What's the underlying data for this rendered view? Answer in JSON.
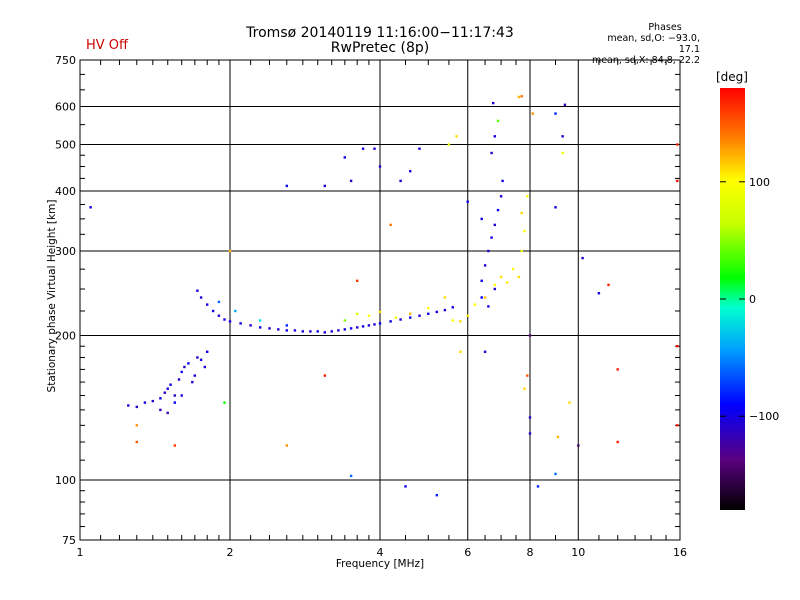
{
  "header": {
    "title": "Tromsø 20140119 11:16:00−11:17:43",
    "subtitle": "RwPretec (8p)",
    "status": "HV Off"
  },
  "phase_stats": {
    "heading": "Phases",
    "line_o": "mean, sd,O: −93.0, 17.1",
    "line_x": "mean, sd,X:  84.8, 22.2"
  },
  "colors": {
    "grid": "#000000",
    "status": "#cc0000"
  },
  "colorbar": {
    "unit": "[deg]",
    "ticks": [
      {
        "value": 100,
        "label": "100"
      },
      {
        "value": 0,
        "label": "0"
      },
      {
        "value": -100,
        "label": "−100"
      }
    ],
    "range": [
      -180,
      180
    ]
  },
  "chart_data": {
    "type": "scatter",
    "xlabel": "Frequency [MHz]",
    "ylabel": "Stationary phase Virtual Height [km]",
    "xscale": "log",
    "yscale": "log",
    "xlim": [
      1,
      16
    ],
    "ylim": [
      75,
      750
    ],
    "xticks": [
      {
        "value": 1,
        "label": "1"
      },
      {
        "value": 2,
        "label": "2"
      },
      {
        "value": 4,
        "label": "4"
      },
      {
        "value": 6,
        "label": "6"
      },
      {
        "value": 8,
        "label": "8"
      },
      {
        "value": 10,
        "label": "10"
      },
      {
        "value": 16,
        "label": "16"
      }
    ],
    "yticks": [
      {
        "value": 75,
        "label": "75"
      },
      {
        "value": 100,
        "label": "100"
      },
      {
        "value": 200,
        "label": "200"
      },
      {
        "value": 300,
        "label": "300"
      },
      {
        "value": 400,
        "label": "400"
      },
      {
        "value": 500,
        "label": "500"
      },
      {
        "value": 600,
        "label": "600"
      },
      {
        "value": 750,
        "label": "750"
      }
    ],
    "grid": true,
    "points_phase_unit": "deg",
    "points": [
      [
        1.25,
        143,
        -105
      ],
      [
        1.3,
        142,
        -110
      ],
      [
        1.35,
        145,
        -100
      ],
      [
        1.4,
        146,
        -108
      ],
      [
        1.45,
        148,
        -95
      ],
      [
        1.48,
        152,
        -112
      ],
      [
        1.5,
        155,
        -100
      ],
      [
        1.52,
        158,
        -98
      ],
      [
        1.55,
        150,
        -110
      ],
      [
        1.58,
        162,
        -105
      ],
      [
        1.6,
        168,
        -100
      ],
      [
        1.62,
        172,
        -110
      ],
      [
        1.65,
        175,
        -95
      ],
      [
        1.68,
        160,
        -108
      ],
      [
        1.7,
        165,
        -102
      ],
      [
        1.72,
        180,
        -110
      ],
      [
        1.75,
        178,
        -100
      ],
      [
        1.78,
        172,
        -105
      ],
      [
        1.8,
        185,
        -98
      ],
      [
        1.45,
        140,
        -115
      ],
      [
        1.55,
        145,
        -90
      ],
      [
        1.6,
        150,
        -100
      ],
      [
        1.5,
        138,
        -120
      ],
      [
        1.72,
        248,
        -100
      ],
      [
        1.75,
        240,
        -105
      ],
      [
        1.8,
        232,
        -102
      ],
      [
        1.85,
        225,
        -100
      ],
      [
        1.9,
        220,
        -108
      ],
      [
        1.95,
        216,
        -100
      ],
      [
        2.0,
        214,
        -104
      ],
      [
        2.1,
        212,
        -98
      ],
      [
        2.2,
        210,
        -106
      ],
      [
        2.3,
        208,
        -100
      ],
      [
        2.4,
        207,
        -102
      ],
      [
        2.5,
        206,
        -110
      ],
      [
        2.6,
        205,
        -100
      ],
      [
        2.7,
        205,
        -104
      ],
      [
        2.8,
        204,
        -100
      ],
      [
        2.9,
        204,
        -106
      ],
      [
        3.0,
        204,
        -98
      ],
      [
        3.1,
        203,
        -102
      ],
      [
        3.2,
        204,
        -100
      ],
      [
        3.3,
        205,
        -108
      ],
      [
        3.4,
        206,
        -104
      ],
      [
        3.5,
        207,
        -100
      ],
      [
        3.6,
        208,
        -106
      ],
      [
        3.7,
        209,
        -100
      ],
      [
        3.8,
        210,
        -102
      ],
      [
        3.9,
        211,
        -104
      ],
      [
        4.0,
        212,
        -98
      ],
      [
        4.2,
        214,
        -100
      ],
      [
        4.4,
        216,
        -106
      ],
      [
        4.6,
        218,
        -100
      ],
      [
        4.8,
        220,
        -104
      ],
      [
        5.0,
        222,
        -100
      ],
      [
        5.2,
        224,
        -102
      ],
      [
        5.4,
        226,
        -106
      ],
      [
        5.6,
        229,
        -100
      ],
      [
        1.9,
        235,
        -60
      ],
      [
        2.05,
        225,
        -40
      ],
      [
        2.3,
        215,
        -20
      ],
      [
        2.6,
        210,
        -80
      ],
      [
        3.4,
        215,
        50
      ],
      [
        3.6,
        222,
        80
      ],
      [
        3.8,
        220,
        100
      ],
      [
        4.0,
        224,
        110
      ],
      [
        4.3,
        218,
        90
      ],
      [
        4.6,
        222,
        120
      ],
      [
        5.0,
        228,
        100
      ],
      [
        5.4,
        240,
        110
      ],
      [
        5.6,
        215,
        100
      ],
      [
        5.8,
        214,
        110
      ],
      [
        6.0,
        220,
        105
      ],
      [
        6.2,
        232,
        100
      ],
      [
        6.5,
        240,
        115
      ],
      [
        6.8,
        255,
        100
      ],
      [
        7.0,
        265,
        110
      ],
      [
        7.2,
        258,
        105
      ],
      [
        7.4,
        275,
        100
      ],
      [
        7.6,
        265,
        110
      ],
      [
        7.7,
        300,
        90
      ],
      [
        7.8,
        330,
        100
      ],
      [
        7.7,
        360,
        110
      ],
      [
        7.9,
        390,
        95
      ],
      [
        6.4,
        260,
        -100
      ],
      [
        6.5,
        280,
        -105
      ],
      [
        6.6,
        300,
        -110
      ],
      [
        6.7,
        320,
        -100
      ],
      [
        6.8,
        340,
        -108
      ],
      [
        6.9,
        365,
        -100
      ],
      [
        7.0,
        390,
        -104
      ],
      [
        7.05,
        420,
        -100
      ],
      [
        6.8,
        250,
        -110
      ],
      [
        6.6,
        230,
        -100
      ],
      [
        6.4,
        240,
        -95
      ],
      [
        6.7,
        480,
        -110
      ],
      [
        6.8,
        520,
        -100
      ],
      [
        6.75,
        610,
        -105
      ],
      [
        6.9,
        560,
        40
      ],
      [
        2.6,
        410,
        -100
      ],
      [
        3.1,
        410,
        -105
      ],
      [
        3.4,
        470,
        -100
      ],
      [
        3.5,
        420,
        -110
      ],
      [
        3.7,
        490,
        -100
      ],
      [
        3.9,
        490,
        -104
      ],
      [
        4.0,
        450,
        -108
      ],
      [
        4.4,
        420,
        -100
      ],
      [
        4.6,
        440,
        -106
      ],
      [
        4.8,
        490,
        -100
      ],
      [
        5.5,
        500,
        80
      ],
      [
        5.7,
        520,
        110
      ],
      [
        6.0,
        380,
        -100
      ],
      [
        6.4,
        350,
        -100
      ],
      [
        1.05,
        370,
        -100
      ],
      [
        3.6,
        260,
        160
      ],
      [
        4.2,
        340,
        140
      ],
      [
        9.0,
        580,
        -80
      ],
      [
        9.4,
        605,
        -120
      ],
      [
        10.2,
        290,
        -110
      ],
      [
        9.3,
        520,
        -110
      ],
      [
        9.0,
        370,
        -100
      ],
      [
        11.0,
        245,
        -100
      ],
      [
        11.5,
        255,
        170
      ],
      [
        15.8,
        500,
        170
      ],
      [
        15.8,
        420,
        175
      ],
      [
        15.8,
        190,
        175
      ],
      [
        15.8,
        130,
        170
      ],
      [
        12.0,
        120,
        170
      ],
      [
        12.0,
        170,
        170
      ],
      [
        8.0,
        200,
        -140
      ],
      [
        8.0,
        135,
        -110
      ],
      [
        8.0,
        125,
        -110
      ],
      [
        7.9,
        165,
        150
      ],
      [
        7.8,
        155,
        110
      ],
      [
        8.3,
        97,
        -80
      ],
      [
        9.0,
        103,
        -60
      ],
      [
        10.0,
        118,
        -150
      ],
      [
        9.1,
        123,
        120
      ],
      [
        9.6,
        145,
        110
      ],
      [
        4.5,
        97,
        -100
      ],
      [
        5.2,
        93,
        -80
      ],
      [
        3.5,
        102,
        -60
      ],
      [
        2.6,
        118,
        130
      ],
      [
        3.1,
        165,
        170
      ],
      [
        1.55,
        118,
        160
      ],
      [
        1.3,
        120,
        150
      ],
      [
        1.3,
        130,
        130
      ],
      [
        1.95,
        145,
        20
      ],
      [
        2.0,
        300,
        120
      ],
      [
        5.8,
        185,
        110
      ],
      [
        6.5,
        185,
        -110
      ],
      [
        7.6,
        628,
        120
      ],
      [
        8.1,
        580,
        130
      ],
      [
        7.7,
        630,
        140
      ],
      [
        9.3,
        480,
        90
      ]
    ]
  }
}
